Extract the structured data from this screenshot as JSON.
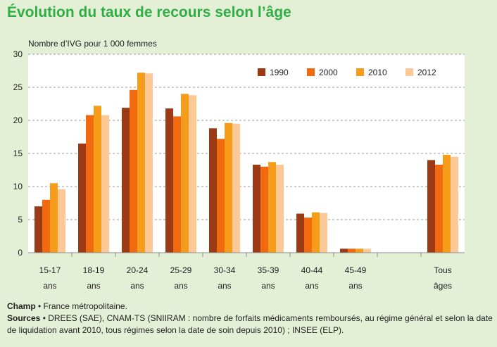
{
  "chart_data": {
    "type": "bar",
    "title": "Évolution du taux de recours selon l’âge",
    "ylabel": "Nombre d’IVG pour 1 000 femmes",
    "xlabel": "",
    "ylim": [
      0,
      30
    ],
    "yticks": [
      0,
      5,
      10,
      15,
      20,
      25,
      30
    ],
    "grid": true,
    "legend_position": "top-right",
    "categories": [
      [
        "15-17",
        "ans"
      ],
      [
        "18-19",
        "ans"
      ],
      [
        "20-24",
        "ans"
      ],
      [
        "25-29",
        "ans"
      ],
      [
        "30-34",
        "ans"
      ],
      [
        "35-39",
        "ans"
      ],
      [
        "40-44",
        "ans"
      ],
      [
        "45-49",
        "ans"
      ],
      [
        "",
        ""
      ],
      [
        "Tous",
        "âges"
      ]
    ],
    "series": [
      {
        "name": "1990",
        "color": "#9b3a14",
        "values": [
          7.0,
          16.5,
          21.9,
          21.8,
          18.8,
          13.3,
          5.9,
          0.6,
          null,
          14.0
        ]
      },
      {
        "name": "2000",
        "color": "#f26a0f",
        "values": [
          8.0,
          20.8,
          24.6,
          20.6,
          17.2,
          13.0,
          5.3,
          0.6,
          null,
          13.3
        ]
      },
      {
        "name": "2010",
        "color": "#f59d1a",
        "values": [
          10.5,
          22.2,
          27.2,
          24.0,
          19.6,
          13.7,
          6.1,
          0.6,
          null,
          14.8
        ]
      },
      {
        "name": "2012",
        "color": "#fcc996",
        "values": [
          9.6,
          20.8,
          27.1,
          23.8,
          19.5,
          13.3,
          6.0,
          0.6,
          null,
          14.5
        ]
      }
    ]
  },
  "footnotes": {
    "champ_label": "Champ",
    "champ_text": " • France métropolitaine.",
    "sources_label": "Sources",
    "sources_text": " • DREES (SAE), CNAM-TS (SNIIRAM : nombre de forfaits médicaments remboursés, au régime général et selon la date de liquidation avant 2010, tous régimes selon la date de soin depuis 2010) ; INSEE (ELP)."
  }
}
